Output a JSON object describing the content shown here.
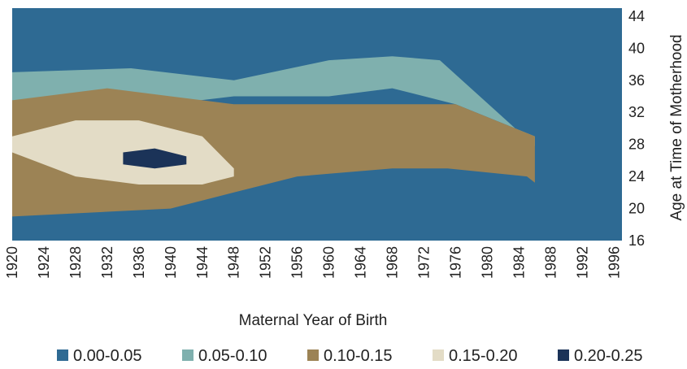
{
  "chart_data": {
    "type": "heatmap",
    "title": "",
    "xlabel": "Maternal Year of Birth",
    "ylabel": "Age at Time of Motherhood",
    "x_ticks": [
      "1920",
      "1924",
      "1928",
      "1932",
      "1936",
      "1940",
      "1944",
      "1948",
      "1952",
      "1956",
      "1960",
      "1964",
      "1968",
      "1972",
      "1976",
      "1980",
      "1984",
      "1988",
      "1992",
      "1996"
    ],
    "y_ticks": [
      "16",
      "20",
      "24",
      "28",
      "32",
      "36",
      "40",
      "44"
    ],
    "xlim": [
      1920,
      1997
    ],
    "ylim": [
      16,
      45
    ],
    "legend_position": "bottom",
    "color_bins": [
      {
        "label": "0.00-0.05",
        "color": "#2e6a93"
      },
      {
        "label": "0.05-0.10",
        "color": "#7fb0ae"
      },
      {
        "label": "0.10-0.15",
        "color": "#9c8355"
      },
      {
        "label": "0.15-0.20",
        "color": "#e3dcc6"
      },
      {
        "label": "0.20-0.25",
        "color": "#1b3358"
      }
    ],
    "surface_bands": [
      {
        "bin": "0.05-0.10",
        "lower_age_by_year": [
          [
            1920,
            33.5
          ],
          [
            1935,
            32.5
          ],
          [
            1948,
            34
          ],
          [
            1960,
            34
          ],
          [
            1968,
            35
          ],
          [
            1976,
            33
          ],
          [
            1986,
            29
          ]
        ],
        "upper_age_by_year": [
          [
            1920,
            37
          ],
          [
            1935,
            37.5
          ],
          [
            1948,
            36
          ],
          [
            1960,
            38.5
          ],
          [
            1968,
            39
          ],
          [
            1974,
            38.5
          ],
          [
            1988,
            26
          ],
          [
            1996,
            17
          ]
        ]
      },
      {
        "bin": "0.10-0.15",
        "lower_age_by_year": [
          [
            1920,
            19
          ],
          [
            1940,
            20
          ],
          [
            1948,
            22
          ],
          [
            1956,
            24
          ],
          [
            1968,
            25
          ],
          [
            1975,
            25
          ],
          [
            1985,
            24
          ],
          [
            1994,
            17
          ]
        ],
        "upper_age_by_year": [
          [
            1920,
            33.5
          ],
          [
            1932,
            35
          ],
          [
            1940,
            34
          ],
          [
            1948,
            33
          ],
          [
            1960,
            33
          ],
          [
            1968,
            33
          ],
          [
            1976,
            33
          ],
          [
            1986,
            29
          ]
        ]
      },
      {
        "bin": "0.15-0.20",
        "lower_age_by_year": [
          [
            1920,
            27
          ],
          [
            1928,
            24
          ],
          [
            1936,
            23
          ],
          [
            1944,
            23
          ],
          [
            1948,
            24
          ]
        ],
        "upper_age_by_year": [
          [
            1920,
            29
          ],
          [
            1928,
            31
          ],
          [
            1936,
            31
          ],
          [
            1944,
            29
          ],
          [
            1948,
            25
          ]
        ]
      },
      {
        "bin": "0.20-0.25",
        "lower_age_by_year": [
          [
            1934,
            25.5
          ],
          [
            1938,
            25
          ],
          [
            1942,
            25.5
          ]
        ],
        "upper_age_by_year": [
          [
            1934,
            27
          ],
          [
            1938,
            27.5
          ],
          [
            1942,
            26.5
          ]
        ]
      }
    ]
  },
  "legend_square_glyph": "■"
}
